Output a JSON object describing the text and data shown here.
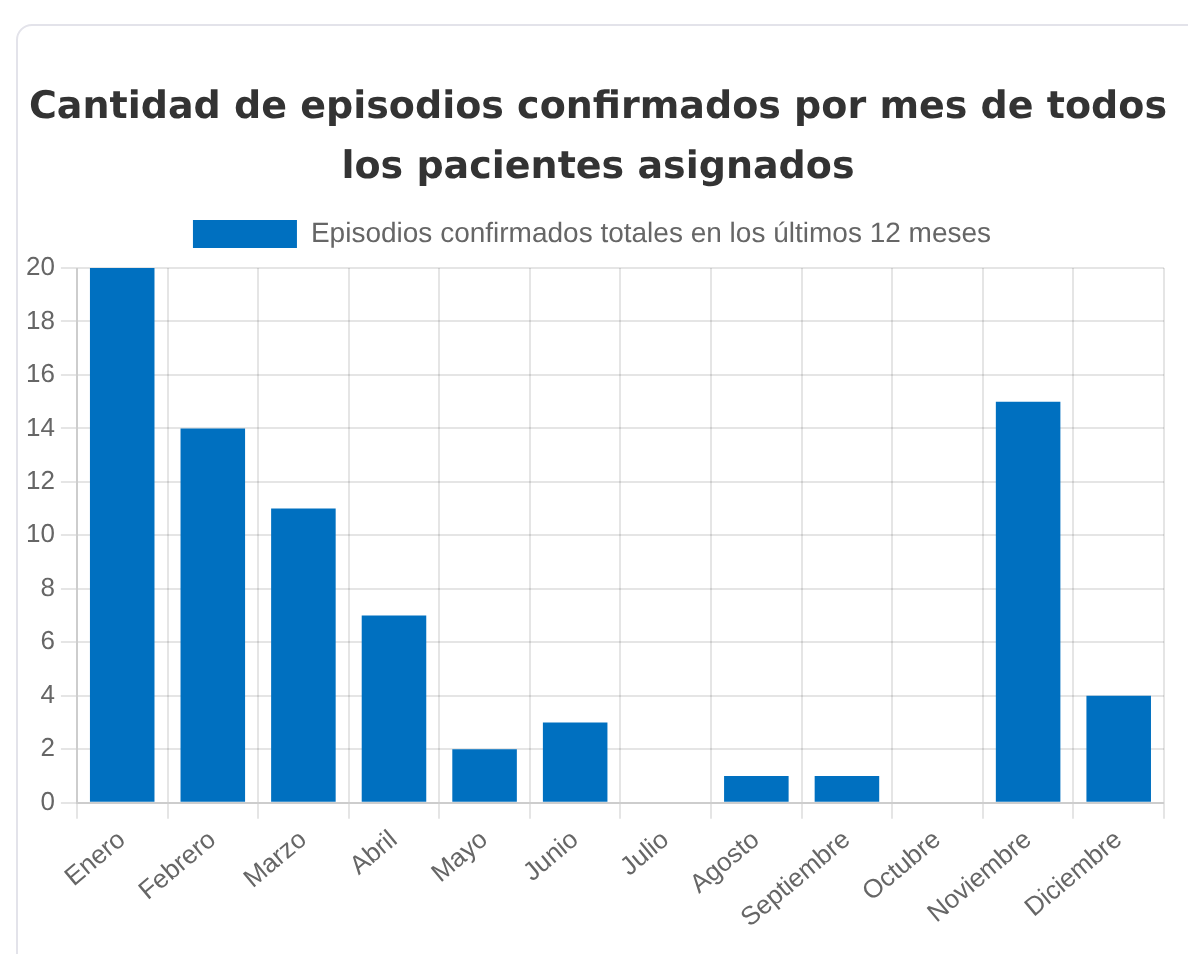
{
  "chart_data": {
    "type": "bar",
    "title": "Cantidad de episodios confirmados por mes de todos los pacientes asignados",
    "categories": [
      "Enero",
      "Febrero",
      "Marzo",
      "Abril",
      "Mayo",
      "Junio",
      "Julio",
      "Agosto",
      "Septiembre",
      "Octubre",
      "Noviembre",
      "Diciembre"
    ],
    "series": [
      {
        "name": "Episodios confirmados totales en los últimos 12 meses",
        "color": "#0070c0",
        "values": [
          20,
          14,
          11,
          7,
          2,
          3,
          0,
          1,
          1,
          0,
          15,
          4
        ]
      }
    ],
    "ylim": [
      0,
      20
    ],
    "yticks": [
      0,
      2,
      4,
      6,
      8,
      10,
      12,
      14,
      16,
      18,
      20
    ],
    "grid": true,
    "legend": "top"
  }
}
